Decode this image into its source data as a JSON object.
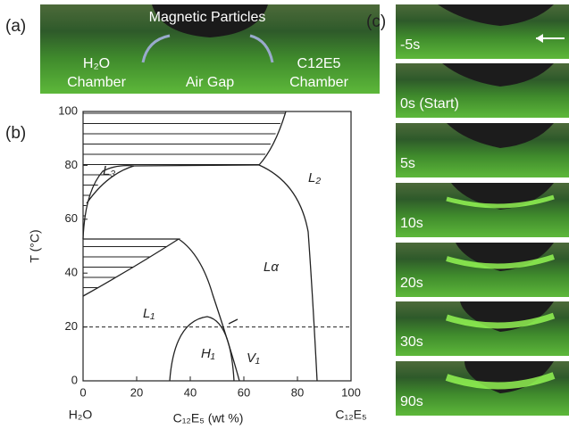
{
  "panel_a": {
    "label": "(a)",
    "top": "Magnetic Particles",
    "left": [
      "H₂O",
      "Chamber"
    ],
    "middle": "Air Gap",
    "right": [
      "C12E5",
      "Chamber"
    ]
  },
  "panel_b": {
    "label": "(b)",
    "chart_data": {
      "type": "phase-diagram",
      "x_label": "C₁₂E₅ (wt %)",
      "y_label": "T (°C)",
      "x_left_label": "H₂O",
      "x_right_label": "C₁₂E₅",
      "xlim": [
        0,
        100
      ],
      "ylim": [
        0,
        100
      ],
      "xticks": [
        0,
        20,
        40,
        60,
        80,
        100
      ],
      "yticks": [
        0,
        20,
        40,
        60,
        80,
        100
      ],
      "reference_line": 20,
      "regions": [
        "L₃",
        "L₂",
        "Lα",
        "L₁",
        "H₁",
        "V₁"
      ]
    }
  },
  "panel_c": {
    "label": "(c)",
    "frames": [
      "-5s",
      "0s (Start)",
      "5s",
      "10s",
      "20s",
      "30s",
      "90s"
    ]
  }
}
